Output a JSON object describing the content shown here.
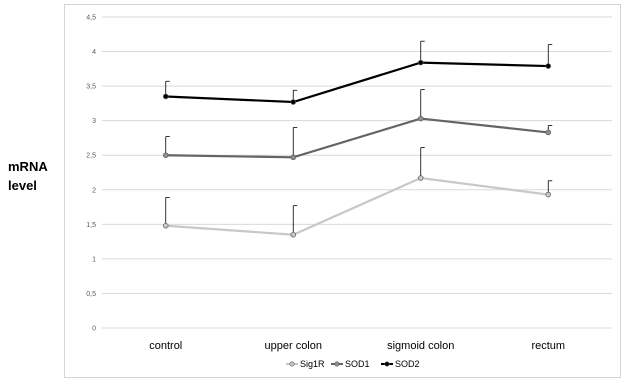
{
  "chart_data": {
    "type": "line",
    "title": "",
    "xlabel": "",
    "ylabel": "mRNA level",
    "ylim": [
      0,
      4.5
    ],
    "yticks": [
      "0",
      "0,5",
      "1",
      "1,5",
      "2",
      "2,5",
      "3",
      "3,5",
      "4",
      "4,5"
    ],
    "grid": true,
    "legend_position": "bottom",
    "categories": [
      "control",
      "upper colon",
      "sigmoid colon",
      "rectum"
    ],
    "series": [
      {
        "name": "Sig1R",
        "color": "#c8c8c8",
        "marker_fill": "#c8c8c8",
        "values": [
          1.48,
          1.35,
          2.17,
          1.93
        ],
        "error": [
          0.41,
          0.42,
          0.44,
          0.2
        ]
      },
      {
        "name": "SOD1",
        "color": "#646464",
        "marker_fill": "#909090",
        "values": [
          2.5,
          2.47,
          3.03,
          2.83
        ],
        "error": [
          0.27,
          0.43,
          0.42,
          0.1
        ]
      },
      {
        "name": "SOD2",
        "color": "#000000",
        "marker_fill": "#000000",
        "values": [
          3.35,
          3.27,
          3.84,
          3.79
        ],
        "error": [
          0.22,
          0.17,
          0.31,
          0.31
        ]
      }
    ]
  }
}
